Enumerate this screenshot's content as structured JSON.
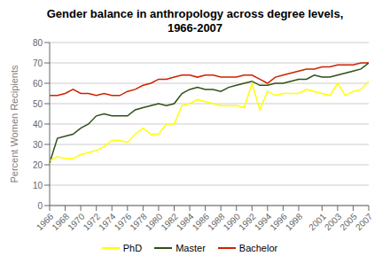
{
  "chart_data": {
    "type": "line",
    "title": "Gender balance in anthropology across degree levels,\n1966-2007",
    "y_label": "Percent Women Recipients",
    "x": [
      1966,
      1967,
      1968,
      1969,
      1970,
      1971,
      1972,
      1973,
      1974,
      1975,
      1976,
      1977,
      1978,
      1979,
      1980,
      1981,
      1982,
      1983,
      1984,
      1985,
      1986,
      1987,
      1988,
      1989,
      1990,
      1991,
      1992,
      1993,
      1994,
      1995,
      1996,
      1997,
      1998,
      1999,
      2000,
      2001,
      2002,
      2003,
      2004,
      2005,
      2006,
      2007
    ],
    "series": [
      {
        "name": "Bachelor",
        "color": "#cc2200",
        "values": [
          54,
          54,
          55,
          57,
          55,
          55,
          54,
          55,
          54,
          54,
          56,
          57,
          59,
          60,
          62,
          62,
          63,
          64,
          64,
          63,
          64,
          64,
          63,
          63,
          63,
          64,
          64,
          62,
          60,
          63,
          64,
          65,
          66,
          67,
          67,
          68,
          68,
          69,
          69,
          69,
          70,
          70
        ]
      },
      {
        "name": "Master",
        "color": "#2d5016",
        "values": [
          21,
          33,
          34,
          35,
          38,
          40,
          44,
          45,
          44,
          44,
          44,
          47,
          48,
          49,
          50,
          49,
          50,
          55,
          57,
          58,
          57,
          57,
          56,
          58,
          59,
          60,
          61,
          59,
          59,
          60,
          60,
          61,
          62,
          62,
          64,
          63,
          63,
          64,
          65,
          66,
          67,
          70
        ]
      },
      {
        "name": "PhD",
        "color": "#ffff00",
        "values": [
          22,
          24,
          23,
          23,
          25,
          26,
          27,
          29,
          32,
          32,
          31,
          35,
          38,
          35,
          35,
          40,
          40,
          49,
          50,
          52,
          51,
          50,
          49,
          49,
          49,
          48,
          60,
          47,
          56,
          54,
          55,
          55,
          55,
          57,
          56,
          55,
          54,
          60,
          54,
          56,
          57,
          61
        ]
      }
    ],
    "xlim": [
      1966,
      2007
    ],
    "xticks": [
      1966,
      1968,
      1970,
      1972,
      1974,
      1976,
      1978,
      1980,
      1982,
      1984,
      1986,
      1988,
      1990,
      1992,
      1994,
      1996,
      1998,
      2001,
      2003,
      2005,
      2007
    ],
    "ylim": [
      0,
      80
    ],
    "yticks": [
      0,
      10,
      20,
      30,
      40,
      50,
      60,
      70,
      80
    ],
    "grid": true,
    "legend": "bottom"
  }
}
